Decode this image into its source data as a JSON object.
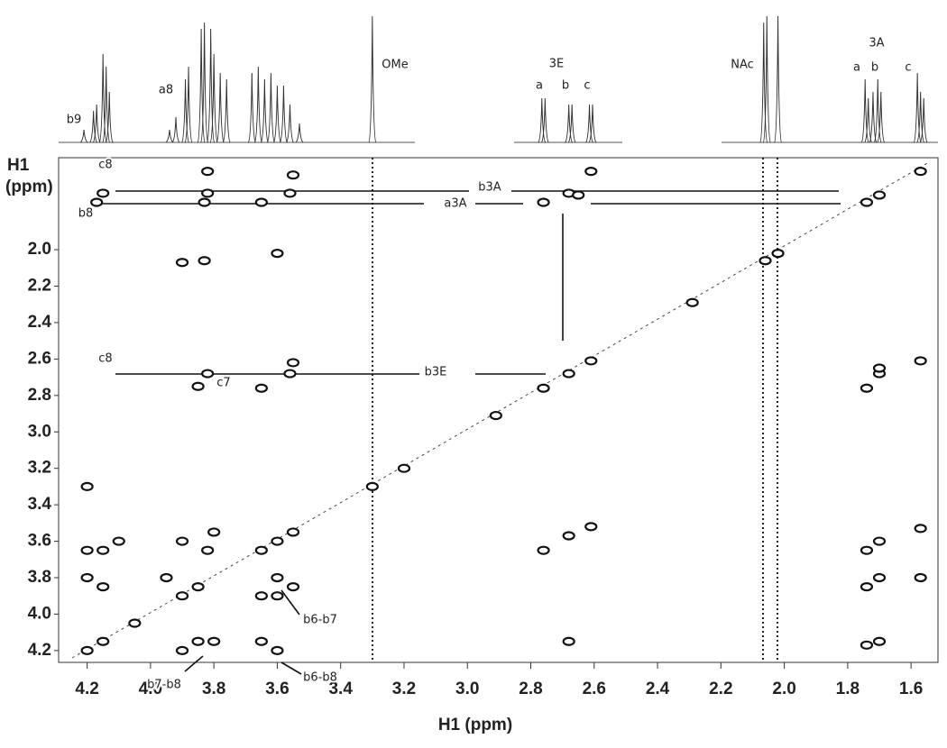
{
  "chart_data": {
    "type": "cosy",
    "x_label": "H1 (ppm)",
    "y_label": [
      "H1",
      "(ppm)"
    ],
    "xlim": [
      4.29,
      1.515
    ],
    "ylim": [
      1.495,
      4.265
    ],
    "xticks": [
      4.2,
      {
        "value": 4,
        "label": "4.0"
      },
      3.8,
      3.6,
      3.4,
      3.2,
      {
        "value": 3,
        "label": "3.0"
      },
      2.8,
      2.6,
      2.4,
      2.2,
      {
        "value": 2,
        "label": "2.0"
      },
      1.8,
      1.6
    ],
    "yticks": [
      {
        "value": 2,
        "label": "2.0"
      },
      2.2,
      2.4,
      2.6,
      2.8,
      {
        "value": 3,
        "label": "3.0"
      },
      3.2,
      3.4,
      3.6,
      3.8,
      {
        "value": 4,
        "label": "4.0"
      },
      4.2
    ],
    "peaks": [
      [
        4.2,
        4.2
      ],
      [
        4.15,
        4.15
      ],
      [
        4.05,
        4.05
      ],
      [
        3.9,
        3.9
      ],
      [
        3.85,
        3.85
      ],
      [
        3.65,
        3.65
      ],
      [
        3.6,
        3.6
      ],
      [
        3.55,
        3.55
      ],
      [
        3.3,
        3.3
      ],
      [
        2.91,
        2.91
      ],
      [
        2.76,
        2.76
      ],
      [
        2.68,
        2.68
      ],
      [
        2.61,
        2.61
      ],
      [
        2.29,
        2.29
      ],
      [
        2.06,
        2.06
      ],
      [
        2.02,
        2.02
      ],
      [
        1.74,
        1.74
      ],
      [
        1.7,
        1.7
      ],
      [
        1.57,
        1.57
      ],
      [
        3.82,
        1.57
      ],
      [
        3.55,
        1.59
      ],
      [
        2.61,
        1.57
      ],
      [
        4.15,
        1.69
      ],
      [
        3.82,
        1.69
      ],
      [
        3.56,
        1.69
      ],
      [
        2.68,
        1.69
      ],
      [
        2.65,
        1.7
      ],
      [
        4.17,
        1.74
      ],
      [
        3.83,
        1.74
      ],
      [
        3.65,
        1.74
      ],
      [
        2.76,
        1.74
      ],
      [
        3.9,
        2.07
      ],
      [
        3.83,
        2.06
      ],
      [
        3.6,
        2.02
      ],
      [
        3.55,
        2.62
      ],
      [
        3.56,
        2.68
      ],
      [
        3.82,
        2.68
      ],
      [
        3.65,
        2.76
      ],
      [
        3.85,
        2.75
      ],
      [
        1.74,
        2.76
      ],
      [
        1.7,
        2.68
      ],
      [
        1.7,
        2.65
      ],
      [
        1.57,
        2.61
      ],
      [
        4.2,
        3.3
      ],
      [
        3.2,
        3.2
      ],
      [
        4.2,
        3.65
      ],
      [
        4.15,
        3.65
      ],
      [
        4.1,
        3.6
      ],
      [
        3.9,
        3.6
      ],
      [
        3.82,
        3.65
      ],
      [
        3.8,
        3.55
      ],
      [
        4.2,
        3.8
      ],
      [
        4.15,
        3.85
      ],
      [
        3.95,
        3.8
      ],
      [
        3.6,
        3.8
      ],
      [
        3.55,
        3.85
      ],
      [
        3.65,
        3.9
      ],
      [
        3.6,
        3.9
      ],
      [
        3.65,
        4.15
      ],
      [
        3.6,
        4.2
      ],
      [
        3.85,
        4.15
      ],
      [
        3.8,
        4.15
      ],
      [
        3.9,
        4.2
      ],
      [
        2.76,
        3.65
      ],
      [
        2.68,
        3.57
      ],
      [
        2.61,
        3.52
      ],
      [
        2.68,
        4.15
      ],
      [
        1.74,
        3.65
      ],
      [
        1.7,
        3.6
      ],
      [
        1.74,
        3.85
      ],
      [
        1.7,
        3.8
      ],
      [
        1.57,
        3.53
      ],
      [
        1.57,
        3.8
      ],
      [
        1.74,
        4.17
      ],
      [
        1.7,
        4.15
      ]
    ],
    "spectrum": [
      [
        4.21,
        10
      ],
      [
        4.18,
        25
      ],
      [
        4.17,
        30
      ],
      [
        4.15,
        70
      ],
      [
        4.14,
        60
      ],
      [
        4.13,
        40
      ],
      [
        3.94,
        10
      ],
      [
        3.92,
        20
      ],
      [
        3.89,
        50
      ],
      [
        3.88,
        60
      ],
      [
        3.84,
        90
      ],
      [
        3.83,
        95
      ],
      [
        3.81,
        90
      ],
      [
        3.8,
        70
      ],
      [
        3.78,
        55
      ],
      [
        3.76,
        50
      ],
      [
        3.68,
        55
      ],
      [
        3.66,
        60
      ],
      [
        3.64,
        50
      ],
      [
        3.62,
        55
      ],
      [
        3.6,
        45
      ],
      [
        3.58,
        45
      ],
      [
        3.56,
        30
      ],
      [
        3.53,
        15
      ],
      [
        3.3,
        100
      ],
      [
        2.765,
        35
      ],
      [
        2.755,
        35
      ],
      [
        2.68,
        30
      ],
      [
        2.67,
        30
      ],
      [
        2.615,
        30
      ],
      [
        2.605,
        30
      ],
      [
        2.065,
        95
      ],
      [
        2.055,
        100
      ],
      [
        2.02,
        100
      ],
      [
        1.745,
        50
      ],
      [
        1.735,
        35
      ],
      [
        1.72,
        40
      ],
      [
        1.705,
        50
      ],
      [
        1.695,
        40
      ],
      [
        1.58,
        55
      ],
      [
        1.57,
        40
      ],
      [
        1.56,
        35
      ]
    ],
    "spectrum_labels": [
      "b9",
      "a8",
      "OMe",
      "3E",
      "a",
      "b",
      "c",
      "NAc",
      "3A",
      "a",
      "b",
      "c"
    ],
    "annotations": [
      "c8",
      "b8",
      "b3A",
      "a3A",
      "c8",
      "c7",
      "b3E",
      "b6-b7",
      "b7-b8",
      "b6-b8"
    ]
  }
}
